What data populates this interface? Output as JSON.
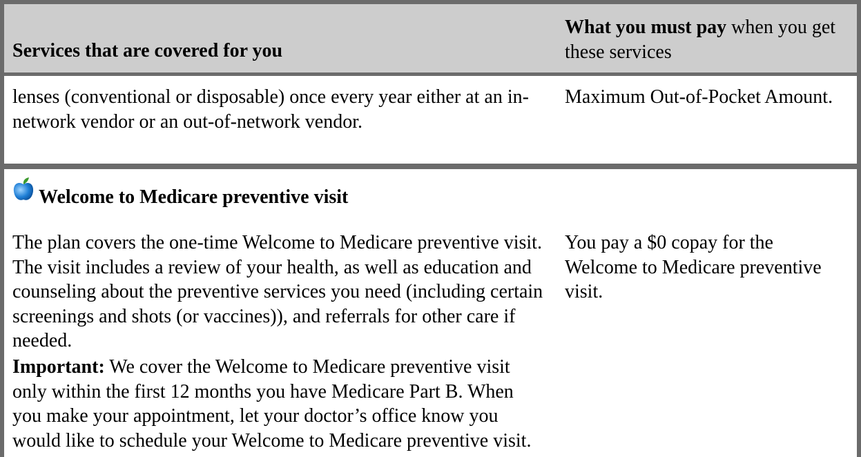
{
  "header": {
    "col1": "Services that are covered for you",
    "col2_bold": "What you must pay",
    "col2_rest": "when you get these services"
  },
  "rows": [
    {
      "left": "lenses (conventional or disposable) once every year either at an in-network vendor or an out-of-network vendor.",
      "right": "Maximum Out-of-Pocket Amount."
    },
    {
      "title": "Welcome to Medicare preventive visit",
      "paragraph": "The plan covers the one-time Welcome to Medicare preventive visit. The visit includes a review of your health, as well as education and counseling about the preventive services you need (including certain screenings and shots (or vaccines)), and referrals for other care if needed.",
      "important_label": "Important:",
      "important_text": "We cover the Welcome to Medicare preventive visit only within the first 12 months you have Medicare Part B. When you make your appointment, let your doctor’s office know you would like to schedule your Welcome to Medicare preventive visit.",
      "right": "You pay a $0 copay for the Welcome to Medicare preventive visit."
    }
  ]
}
